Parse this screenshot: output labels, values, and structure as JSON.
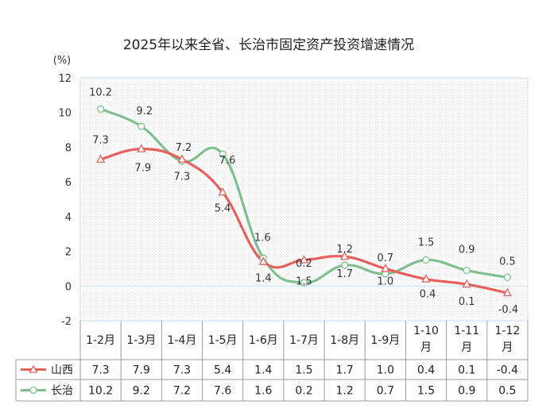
{
  "chart_data": {
    "type": "line",
    "title": "2025年以来全省、长治市固定资产投资增速情况",
    "ylabel": "(%)",
    "ylim": [
      -2,
      12
    ],
    "ytick_labels": [
      "-2",
      "0",
      "2",
      "4",
      "6",
      "8",
      "10",
      "12"
    ],
    "categories": [
      "1-2月",
      "1-3月",
      "1-4月",
      "1-5月",
      "1-6月",
      "1-7月",
      "1-8月",
      "1-9月",
      "1-10月",
      "1-11月",
      "1-12月"
    ],
    "category_lines": [
      [
        "1-2月"
      ],
      [
        "1-3月"
      ],
      [
        "1-4月"
      ],
      [
        "1-5月"
      ],
      [
        "1-6月"
      ],
      [
        "1-7月"
      ],
      [
        "1-8月"
      ],
      [
        "1-9月"
      ],
      [
        "1-10",
        "月"
      ],
      [
        "1-11",
        "月"
      ],
      [
        "1-12",
        "月"
      ]
    ],
    "series": [
      {
        "name": "山西",
        "color": "#E8605B",
        "marker": "triangle",
        "values": [
          7.3,
          7.9,
          7.3,
          5.4,
          1.4,
          1.5,
          1.7,
          1.0,
          0.4,
          0.1,
          -0.4
        ],
        "value_labels": [
          "7.3",
          "7.9",
          "7.3",
          "5.4",
          "1.4",
          "1.5",
          "1.7",
          "1.0",
          "0.4",
          "0.1",
          "-0.4"
        ]
      },
      {
        "name": "长治",
        "color": "#7EBF8E",
        "marker": "circle",
        "values": [
          10.2,
          9.2,
          7.2,
          7.6,
          1.6,
          0.2,
          1.2,
          0.7,
          1.5,
          0.9,
          0.5
        ],
        "value_labels": [
          "10.2",
          "9.2",
          "7.2",
          "7.6",
          "1.6",
          "0.2",
          "1.2",
          "0.7",
          "1.5",
          "0.9",
          "0.5"
        ]
      }
    ],
    "data_table": true,
    "grid": "dotted pattern background"
  }
}
